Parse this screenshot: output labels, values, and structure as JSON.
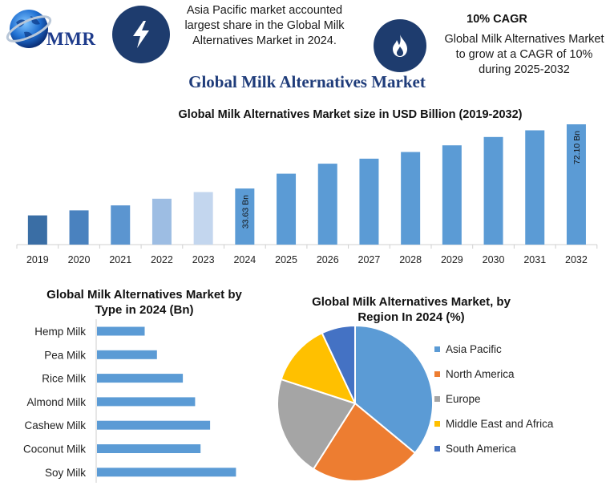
{
  "header": {
    "logo_text": "MMR",
    "info1": [
      "Asia Pacific market accounted",
      "largest share in the Global Milk",
      "Alternatives Market in 2024."
    ],
    "cagr_title": "10% CAGR",
    "info2": [
      "Global Milk Alternatives Market",
      "to grow at a CAGR of 10%",
      "during 2025-2032"
    ],
    "icon1": "lightning-icon",
    "icon2": "flame-icon",
    "logo_icon": "globe-icon"
  },
  "main_title": "Global Milk Alternatives Market",
  "colors": {
    "header_circle": "#1e3c6e",
    "bar_2019": "#3a6ea5",
    "bar_2020": "#4a82bf",
    "bar_2021": "#5b95d0",
    "bar_2022": "#9dbde3",
    "bar_2023": "#c3d6ee",
    "bar_main": "#5b9bd5",
    "hbar": "#5b9bd5"
  },
  "chart_data": [
    {
      "type": "bar",
      "title": "Global Milk Alternatives Market size in USD Billion (2019-2032)",
      "categories": [
        "2019",
        "2020",
        "2021",
        "2022",
        "2023",
        "2024",
        "2025",
        "2026",
        "2027",
        "2028",
        "2029",
        "2030",
        "2031",
        "2032"
      ],
      "values": [
        17.5,
        20.5,
        23.5,
        27.5,
        31.5,
        33.63,
        42.5,
        48.5,
        51.5,
        55.5,
        59.5,
        64.5,
        68.5,
        72.1
      ],
      "data_labels": {
        "5": "33.63 Bn",
        "13": "72.10 Bn"
      },
      "ylim": [
        0,
        72.1
      ],
      "grid": false
    },
    {
      "type": "bar",
      "orientation": "horizontal",
      "title": [
        "Global Milk Alternatives Market by",
        "Type in 2024 (Bn)"
      ],
      "categories": [
        "Hemp Milk",
        "Pea Milk",
        "Rice Milk",
        "Almond Milk",
        "Cashew Milk",
        "Coconut Milk",
        "Soy Milk"
      ],
      "values": [
        3.5,
        4.4,
        6.3,
        7.2,
        8.3,
        7.6,
        10.2
      ],
      "xlim": [
        0,
        12
      ],
      "grid": false
    },
    {
      "type": "pie",
      "title": [
        "Global Milk Alternatives Market, by",
        "Region In 2024 (%)"
      ],
      "labels": [
        "Asia Pacific",
        "North America",
        "Europe",
        "Middle East and Africa",
        "South America"
      ],
      "values": [
        36,
        23,
        21,
        13,
        7
      ],
      "colors": [
        "#5b9bd5",
        "#ed7d31",
        "#a5a5a5",
        "#ffc000",
        "#4472c4"
      ],
      "legend_position": "right"
    }
  ]
}
